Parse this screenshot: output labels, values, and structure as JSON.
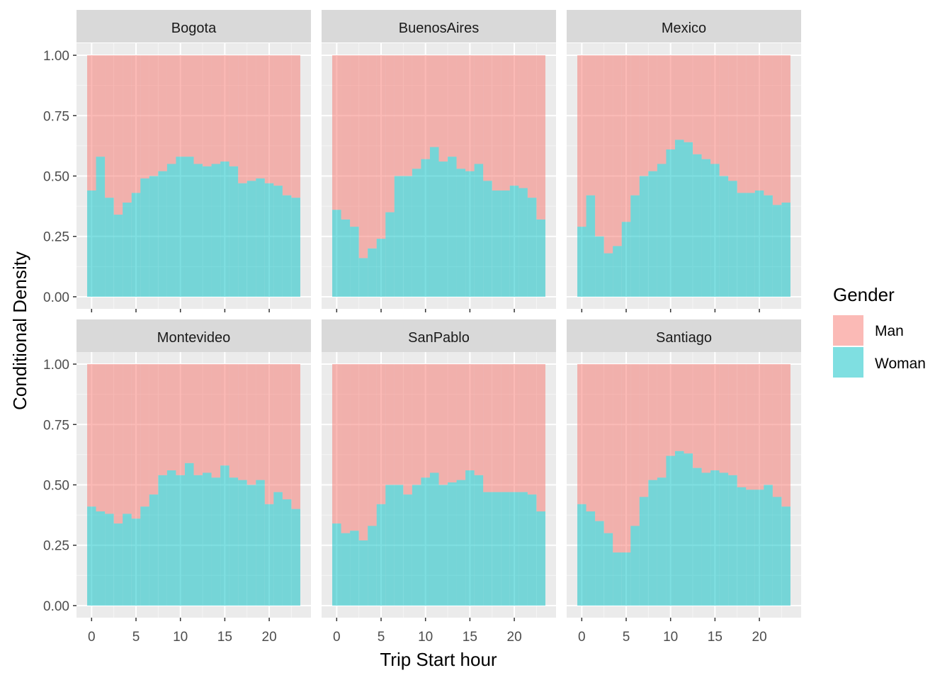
{
  "chart_data": {
    "type": "area",
    "subtype": "conditional-density-histogram",
    "facet_layout": "2x3",
    "xlabel": "Trip Start hour",
    "ylabel": "Conditional Density",
    "x_ticks": [
      0,
      5,
      10,
      15,
      20
    ],
    "y_ticks": [
      "0.00",
      "0.25",
      "0.50",
      "0.75",
      "1.00"
    ],
    "xlim": [
      -0.5,
      23.5
    ],
    "ylim": [
      0,
      1
    ],
    "grid": true,
    "legend": {
      "title": "Gender",
      "position": "right",
      "entries": [
        {
          "label": "Man",
          "color": "#F8766D"
        },
        {
          "label": "Woman",
          "color": "#00BFC4"
        }
      ]
    },
    "hours": [
      0,
      1,
      2,
      3,
      4,
      5,
      6,
      7,
      8,
      9,
      10,
      11,
      12,
      13,
      14,
      15,
      16,
      17,
      18,
      19,
      20,
      21,
      22,
      23
    ],
    "facets": [
      {
        "name": "Bogota",
        "woman_share": [
          0.44,
          0.58,
          0.41,
          0.34,
          0.39,
          0.43,
          0.49,
          0.5,
          0.52,
          0.55,
          0.58,
          0.58,
          0.55,
          0.54,
          0.55,
          0.56,
          0.54,
          0.47,
          0.48,
          0.49,
          0.47,
          0.46,
          0.42,
          0.41
        ]
      },
      {
        "name": "BuenosAires",
        "woman_share": [
          0.36,
          0.32,
          0.29,
          0.16,
          0.2,
          0.24,
          0.35,
          0.5,
          0.5,
          0.53,
          0.57,
          0.62,
          0.56,
          0.58,
          0.53,
          0.52,
          0.55,
          0.48,
          0.44,
          0.44,
          0.46,
          0.45,
          0.41,
          0.32
        ]
      },
      {
        "name": "Mexico",
        "woman_share": [
          0.29,
          0.42,
          0.25,
          0.18,
          0.21,
          0.31,
          0.42,
          0.5,
          0.52,
          0.55,
          0.61,
          0.65,
          0.64,
          0.59,
          0.57,
          0.55,
          0.5,
          0.48,
          0.43,
          0.43,
          0.44,
          0.42,
          0.38,
          0.39
        ]
      },
      {
        "name": "Montevideo",
        "woman_share": [
          0.41,
          0.39,
          0.38,
          0.34,
          0.38,
          0.36,
          0.41,
          0.46,
          0.54,
          0.56,
          0.54,
          0.59,
          0.54,
          0.55,
          0.53,
          0.58,
          0.53,
          0.52,
          0.5,
          0.52,
          0.42,
          0.47,
          0.44,
          0.4
        ]
      },
      {
        "name": "SanPablo",
        "woman_share": [
          0.34,
          0.3,
          0.31,
          0.27,
          0.33,
          0.42,
          0.5,
          0.5,
          0.46,
          0.5,
          0.53,
          0.55,
          0.5,
          0.51,
          0.52,
          0.56,
          0.54,
          0.47,
          0.47,
          0.47,
          0.47,
          0.47,
          0.46,
          0.39
        ]
      },
      {
        "name": "Santiago",
        "woman_share": [
          0.42,
          0.39,
          0.35,
          0.3,
          0.22,
          0.22,
          0.33,
          0.45,
          0.52,
          0.53,
          0.62,
          0.64,
          0.63,
          0.57,
          0.55,
          0.56,
          0.55,
          0.54,
          0.49,
          0.48,
          0.48,
          0.5,
          0.45,
          0.41
        ]
      }
    ]
  }
}
